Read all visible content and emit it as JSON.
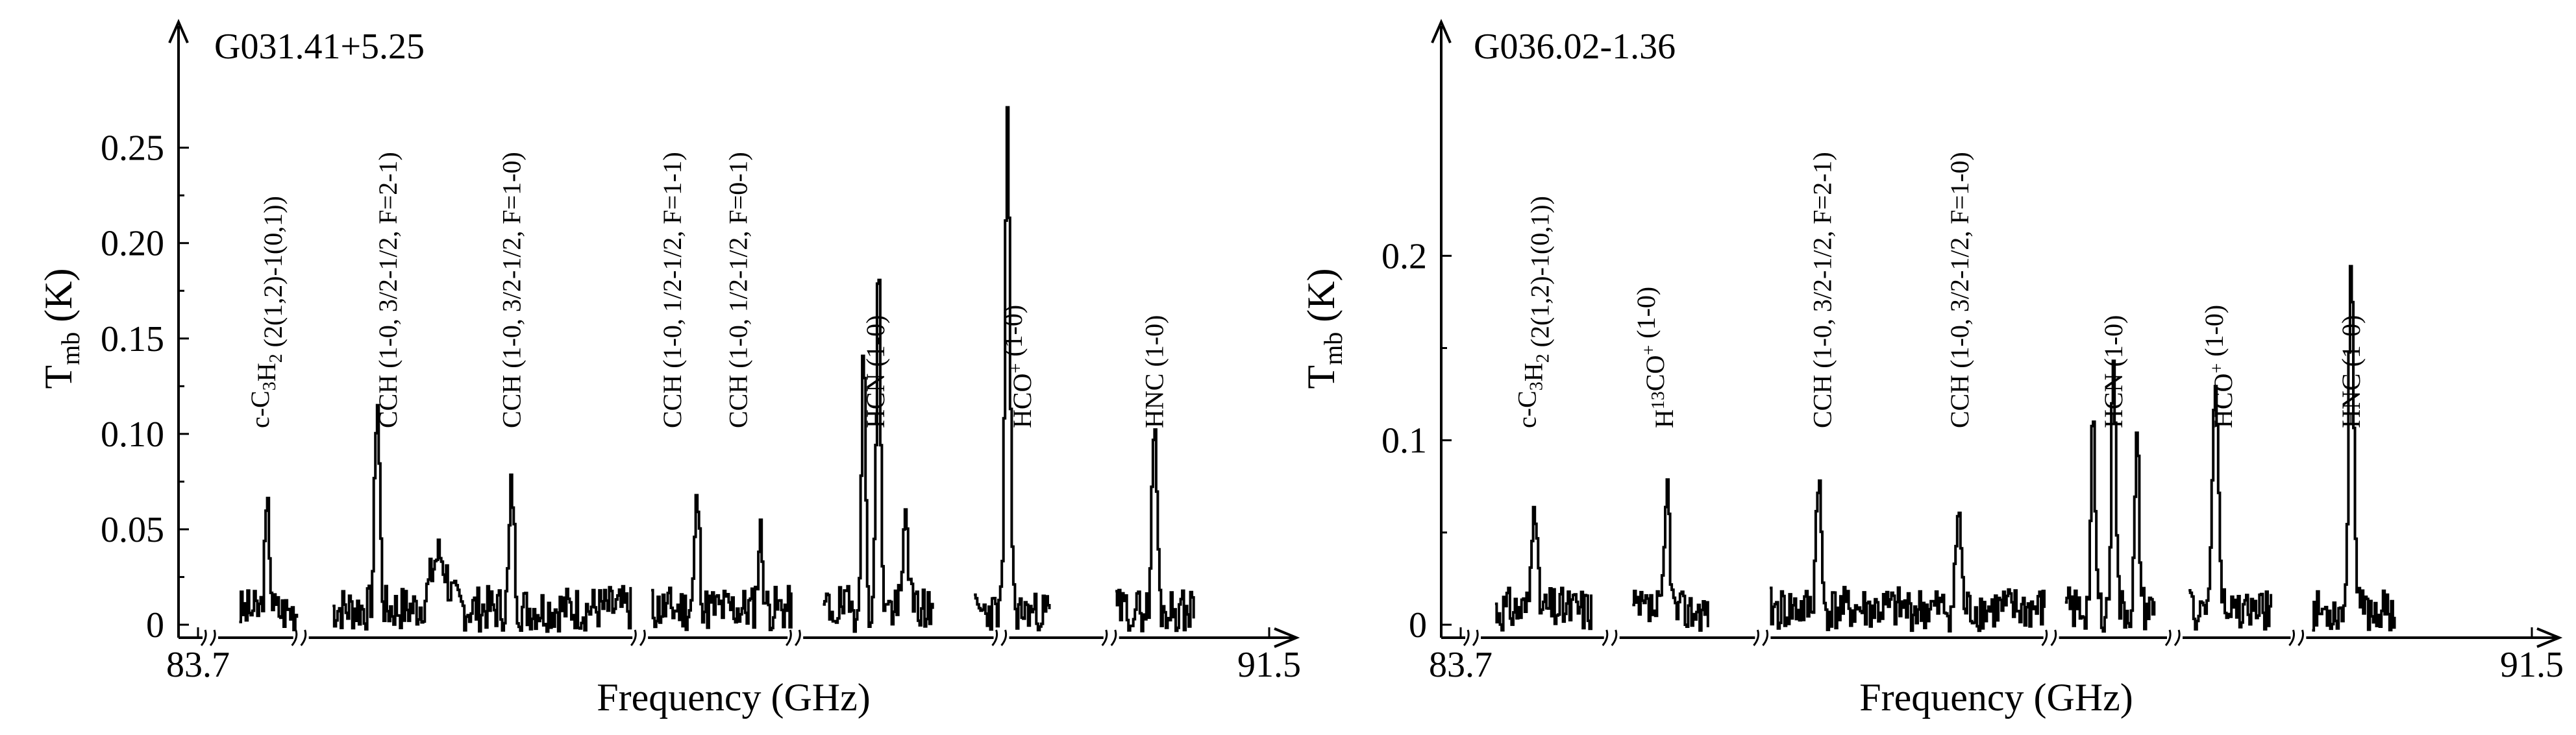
{
  "chart_data": [
    {
      "type": "line",
      "title": "G031.41+5.25",
      "xlabel": "Frequency (GHz)",
      "ylabel": {
        "main": "T",
        "sub": "mb",
        "rest": " (K)"
      },
      "xlim": [
        83.7,
        91.5
      ],
      "ylim": [
        -0.01,
        0.29
      ],
      "x_tick_labels": [
        "83.7",
        "91.5"
      ],
      "y_ticks": [
        {
          "value": 0.0,
          "label": "0"
        },
        {
          "value": 0.05,
          "label": "0.05"
        },
        {
          "value": 0.1,
          "label": "0.10"
        },
        {
          "value": 0.15,
          "label": "0.15"
        },
        {
          "value": 0.2,
          "label": "0.20"
        },
        {
          "value": 0.25,
          "label": "0.25"
        }
      ],
      "axis_breaks_x": [
        83.79,
        84.45,
        86.92,
        88.05,
        89.55,
        90.35
      ],
      "segments": [
        {
          "x0": 84.0,
          "x1": 84.42,
          "noise": 0.011,
          "seed": 3,
          "peaks": [
            [
              84.2,
              0.052,
              0.025
            ]
          ]
        },
        {
          "x0": 84.68,
          "x1": 86.85,
          "noise": 0.012,
          "seed": 7,
          "peaks": [
            [
              85.0,
              0.111,
              0.025
            ],
            [
              85.98,
              0.064,
              0.025
            ],
            [
              85.45,
              0.028,
              0.08
            ]
          ]
        },
        {
          "x0": 87.0,
          "x1": 88.02,
          "noise": 0.012,
          "seed": 11,
          "peaks": [
            [
              87.33,
              0.057,
              0.025
            ],
            [
              87.79,
              0.039,
              0.025
            ]
          ]
        },
        {
          "x0": 88.25,
          "x1": 89.05,
          "noise": 0.012,
          "seed": 19,
          "peaks": [
            [
              88.54,
              0.13,
              0.022
            ],
            [
              88.65,
              0.178,
              0.022
            ],
            [
              88.85,
              0.052,
              0.025
            ]
          ]
        },
        {
          "x0": 89.35,
          "x1": 89.9,
          "noise": 0.01,
          "seed": 23,
          "peaks": [
            [
              89.59,
              0.255,
              0.025
            ]
          ]
        },
        {
          "x0": 90.38,
          "x1": 90.95,
          "noise": 0.011,
          "seed": 29,
          "peaks": [
            [
              90.66,
              0.099,
              0.025
            ]
          ]
        }
      ],
      "line_labels": [
        {
          "x": 84.15,
          "parts": [
            [
              "c-C",
              false
            ],
            [
              "3",
              true
            ],
            [
              "H",
              false
            ],
            [
              "2",
              true
            ],
            [
              " (2(1,2)-1(0,1))",
              false
            ]
          ]
        },
        {
          "x": 85.08,
          "parts": [
            [
              "CCH (1-0, 3/2-1/2, F=2-1)",
              false
            ]
          ]
        },
        {
          "x": 85.98,
          "parts": [
            [
              "CCH (1-0, 3/2-1/2, F=1-0)",
              false
            ]
          ]
        },
        {
          "x": 87.15,
          "parts": [
            [
              "CCH (1-0, 1/2-1/2, F=1-1)",
              false
            ]
          ]
        },
        {
          "x": 87.63,
          "parts": [
            [
              "CCH (1-0, 1/2-1/2, F=0-1)",
              false
            ]
          ]
        },
        {
          "x": 88.63,
          "parts": [
            [
              "HCN (1-0)",
              false
            ]
          ]
        },
        {
          "x": 89.7,
          "parts": [
            [
              "HCO",
              false
            ],
            [
              "+",
              true
            ],
            [
              " (1-0)",
              false
            ]
          ]
        },
        {
          "x": 90.66,
          "parts": [
            [
              "HNC (1-0)",
              false
            ]
          ]
        }
      ]
    },
    {
      "type": "line",
      "title": "G036.02-1.36",
      "xlabel": "Frequency (GHz)",
      "ylabel": {
        "main": "T",
        "sub": "mb",
        "rest": " (K)"
      },
      "xlim": [
        83.7,
        91.5
      ],
      "ylim": [
        -0.01,
        0.3
      ],
      "x_tick_labels": [
        "83.7",
        "91.5"
      ],
      "y_ticks": [
        {
          "value": 0.0,
          "label": "0"
        },
        {
          "value": 0.1,
          "label": "0.1"
        },
        {
          "value": 0.2,
          "label": "0.2"
        }
      ],
      "axis_breaks_x": [
        83.79,
        84.8,
        85.9,
        88.0,
        88.9,
        89.8
      ],
      "segments": [
        {
          "x0": 83.95,
          "x1": 84.65,
          "noise": 0.012,
          "seed": 31,
          "peaks": [
            [
              84.23,
              0.067,
              0.025
            ]
          ]
        },
        {
          "x0": 84.95,
          "x1": 85.5,
          "noise": 0.011,
          "seed": 37,
          "peaks": [
            [
              85.2,
              0.067,
              0.025
            ]
          ]
        },
        {
          "x0": 85.95,
          "x1": 87.95,
          "noise": 0.012,
          "seed": 41,
          "peaks": [
            [
              86.3,
              0.074,
              0.025
            ],
            [
              87.32,
              0.055,
              0.025
            ]
          ]
        },
        {
          "x0": 88.1,
          "x1": 88.75,
          "noise": 0.012,
          "seed": 43,
          "peaks": [
            [
              88.3,
              0.098,
              0.022
            ],
            [
              88.45,
              0.143,
              0.022
            ],
            [
              88.62,
              0.089,
              0.022
            ]
          ]
        },
        {
          "x0": 89.0,
          "x1": 89.6,
          "noise": 0.011,
          "seed": 47,
          "peaks": [
            [
              89.19,
              0.124,
              0.03
            ]
          ]
        },
        {
          "x0": 89.9,
          "x1": 90.5,
          "noise": 0.011,
          "seed": 53,
          "peaks": [
            [
              90.18,
              0.196,
              0.025
            ]
          ]
        }
      ],
      "line_labels": [
        {
          "x": 84.18,
          "parts": [
            [
              "c-C",
              false
            ],
            [
              "3",
              true
            ],
            [
              "H",
              false
            ],
            [
              "2",
              true
            ],
            [
              " (2(1,2)-1(0,1))",
              false
            ]
          ]
        },
        {
          "x": 85.18,
          "parts": [
            [
              "H",
              false
            ],
            [
              "13",
              true
            ],
            [
              "CO",
              false
            ],
            [
              "+",
              true
            ],
            [
              " (1-0)",
              false
            ]
          ]
        },
        {
          "x": 86.33,
          "parts": [
            [
              "CCH (1-0, 3/2-1/2, F=2-1)",
              false
            ]
          ]
        },
        {
          "x": 87.33,
          "parts": [
            [
              "CCH (1-0, 3/2-1/2, F=1-0)",
              false
            ]
          ]
        },
        {
          "x": 88.45,
          "parts": [
            [
              "HCN (1-0)",
              false
            ]
          ]
        },
        {
          "x": 89.25,
          "parts": [
            [
              "HCO",
              false
            ],
            [
              "+",
              true
            ],
            [
              " (1-0)",
              false
            ]
          ]
        },
        {
          "x": 90.18,
          "parts": [
            [
              "HNC (1-0)",
              false
            ]
          ]
        }
      ]
    }
  ]
}
